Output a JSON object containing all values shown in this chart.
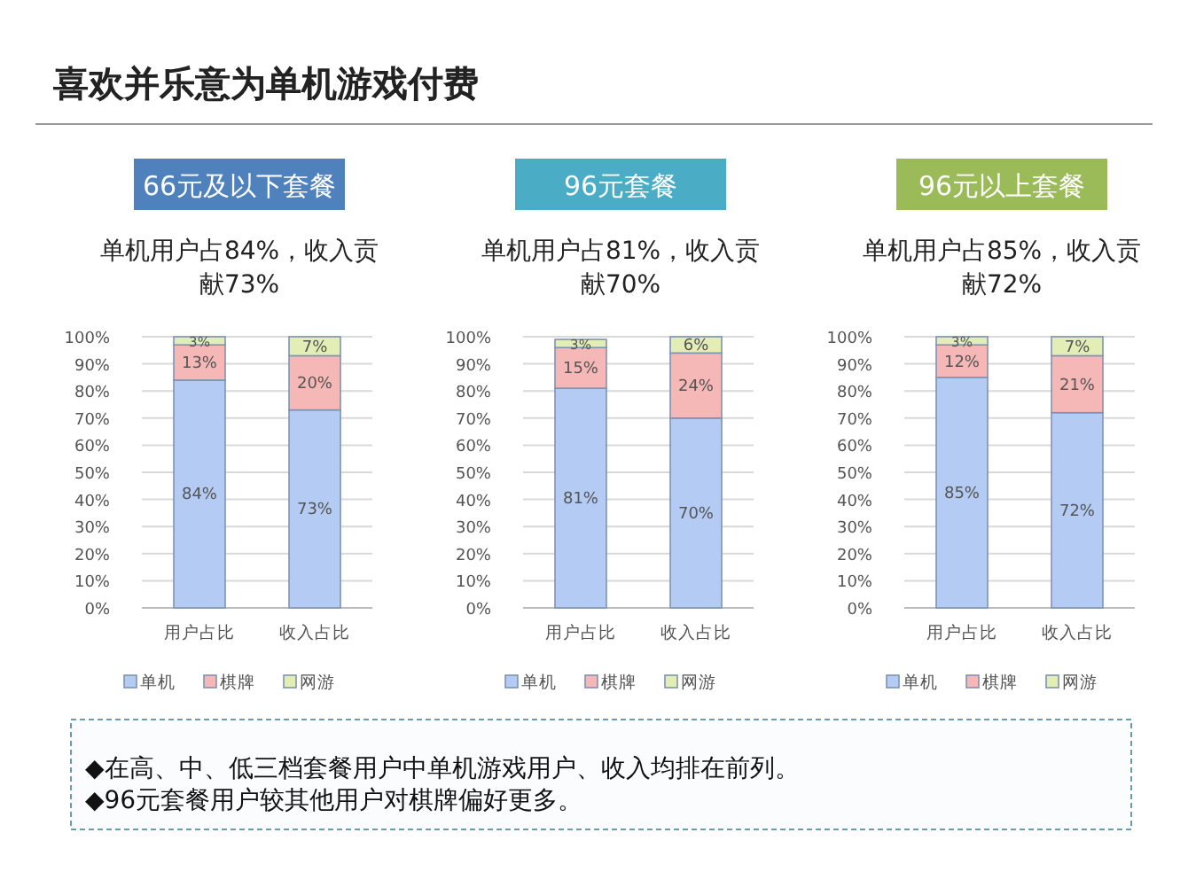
{
  "chart_data": [
    {
      "type": "bar",
      "title": "66元及以下套餐",
      "subtitle": "单机用户占84%，收入贡献73%",
      "annotations": [
        "喜欢并乐意为单机游戏付费",
        "◆在高、中、低三档套餐用户中单机游戏用户、收入均排在前列。",
        "◆96元套餐用户较其他用户对棋牌偏好更多。"
      ],
      "categories": [
        "用户占比",
        "收入占比"
      ],
      "stacked": true,
      "grid": "y",
      "legend": "bottom",
      "ylim": [
        0,
        100
      ],
      "yticks": [
        {
          "value": 0,
          "label": "0%"
        },
        {
          "value": 10,
          "label": "10%"
        },
        {
          "value": 20,
          "label": "20%"
        },
        {
          "value": 30,
          "label": "30%"
        },
        {
          "value": 40,
          "label": "40%"
        },
        {
          "value": 50,
          "label": "50%"
        },
        {
          "value": 60,
          "label": "60%"
        },
        {
          "value": 70,
          "label": "70%"
        },
        {
          "value": 80,
          "label": "80%"
        },
        {
          "value": 90,
          "label": "90%"
        },
        {
          "value": 100,
          "label": "100%"
        }
      ],
      "series": [
        {
          "name": "单机",
          "color": "#b4cbf3",
          "values": [
            84,
            73
          ],
          "value_labels": [
            "84%",
            "73%"
          ]
        },
        {
          "name": "棋牌",
          "color": "#f6b8b6",
          "values": [
            13,
            20
          ],
          "value_labels": [
            "13%",
            "20%"
          ]
        },
        {
          "name": "网游",
          "color": "#e2eeb6",
          "values": [
            3,
            7
          ],
          "value_labels": [
            "3%",
            "7%"
          ]
        }
      ]
    },
    {
      "type": "bar",
      "title": "96元套餐",
      "subtitle": "单机用户占81%，收入贡献70%",
      "categories": [
        "用户占比",
        "收入占比"
      ],
      "stacked": true,
      "grid": "y",
      "legend": "bottom",
      "ylim": [
        0,
        100
      ],
      "yticks": [
        {
          "value": 0,
          "label": "0%"
        },
        {
          "value": 10,
          "label": "10%"
        },
        {
          "value": 20,
          "label": "20%"
        },
        {
          "value": 30,
          "label": "30%"
        },
        {
          "value": 40,
          "label": "40%"
        },
        {
          "value": 50,
          "label": "50%"
        },
        {
          "value": 60,
          "label": "60%"
        },
        {
          "value": 70,
          "label": "70%"
        },
        {
          "value": 80,
          "label": "80%"
        },
        {
          "value": 90,
          "label": "90%"
        },
        {
          "value": 100,
          "label": "100%"
        }
      ],
      "series": [
        {
          "name": "单机",
          "color": "#b4cbf3",
          "values": [
            81,
            70
          ],
          "value_labels": [
            "81%",
            "70%"
          ]
        },
        {
          "name": "棋牌",
          "color": "#f6b8b6",
          "values": [
            15,
            24
          ],
          "value_labels": [
            "15%",
            "24%"
          ]
        },
        {
          "name": "网游",
          "color": "#e2eeb6",
          "values": [
            3,
            6
          ],
          "value_labels": [
            "3%",
            "6%"
          ]
        }
      ]
    },
    {
      "type": "bar",
      "title": "96元以上套餐",
      "subtitle": "单机用户占85%，收入贡献72%",
      "categories": [
        "用户占比",
        "收入占比"
      ],
      "stacked": true,
      "grid": "y",
      "legend": "bottom",
      "ylim": [
        0,
        100
      ],
      "yticks": [
        {
          "value": 0,
          "label": "0%"
        },
        {
          "value": 10,
          "label": "10%"
        },
        {
          "value": 20,
          "label": "20%"
        },
        {
          "value": 30,
          "label": "30%"
        },
        {
          "value": 40,
          "label": "40%"
        },
        {
          "value": 50,
          "label": "50%"
        },
        {
          "value": 60,
          "label": "60%"
        },
        {
          "value": 70,
          "label": "70%"
        },
        {
          "value": 80,
          "label": "80%"
        },
        {
          "value": 90,
          "label": "90%"
        },
        {
          "value": 100,
          "label": "100%"
        }
      ],
      "series": [
        {
          "name": "单机",
          "color": "#b4cbf3",
          "values": [
            85,
            72
          ],
          "value_labels": [
            "85%",
            "72%"
          ]
        },
        {
          "name": "棋牌",
          "color": "#f6b8b6",
          "values": [
            12,
            21
          ],
          "value_labels": [
            "12%",
            "21%"
          ]
        },
        {
          "name": "网游",
          "color": "#e2eeb6",
          "values": [
            3,
            7
          ],
          "value_labels": [
            "3%",
            "7%"
          ]
        }
      ]
    }
  ]
}
